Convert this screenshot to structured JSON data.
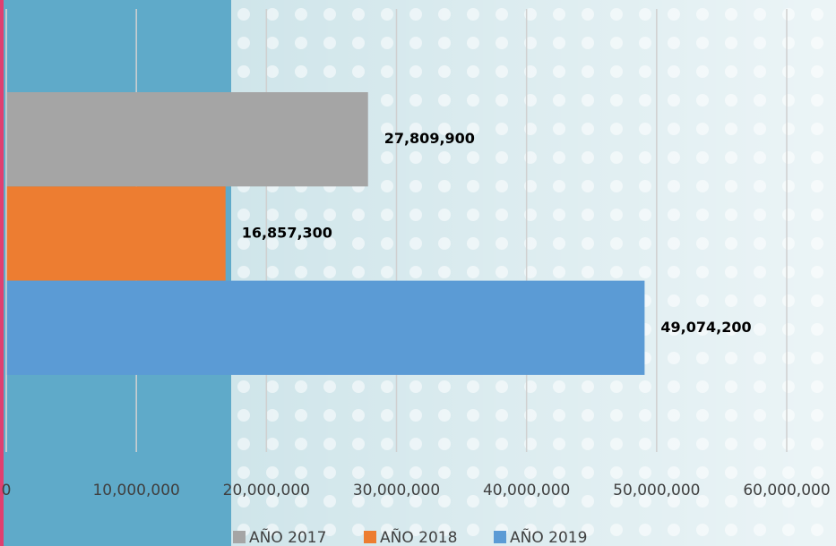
{
  "chart_data": {
    "type": "bar",
    "orientation": "horizontal",
    "categories": [
      null
    ],
    "series": [
      {
        "name": "AÑO 2017",
        "color": "#a5a5a5",
        "values": [
          27809900
        ],
        "value_labels": [
          "27,809,900"
        ]
      },
      {
        "name": "AÑO 2018",
        "color": "#ed7d31",
        "values": [
          16857300
        ],
        "value_labels": [
          "16,857,300"
        ]
      },
      {
        "name": "AÑO 2019",
        "color": "#5b9bd5",
        "values": [
          49074200
        ],
        "value_labels": [
          "49,074,200"
        ]
      }
    ],
    "xlim": [
      0,
      60000000
    ],
    "xticks": [
      0,
      {
        "value": 10000000,
        "label": "10,000,000"
      },
      {
        "value": 20000000,
        "label": "20,000,000"
      },
      {
        "value": 30000000,
        "label": "30,000,000"
      },
      {
        "value": 40000000,
        "label": "40,000,000"
      },
      {
        "value": 50000000,
        "label": "50,000,000"
      },
      {
        "value": 60000000,
        "label": "60,000,000"
      }
    ],
    "grid": true,
    "legend": "bottom"
  }
}
